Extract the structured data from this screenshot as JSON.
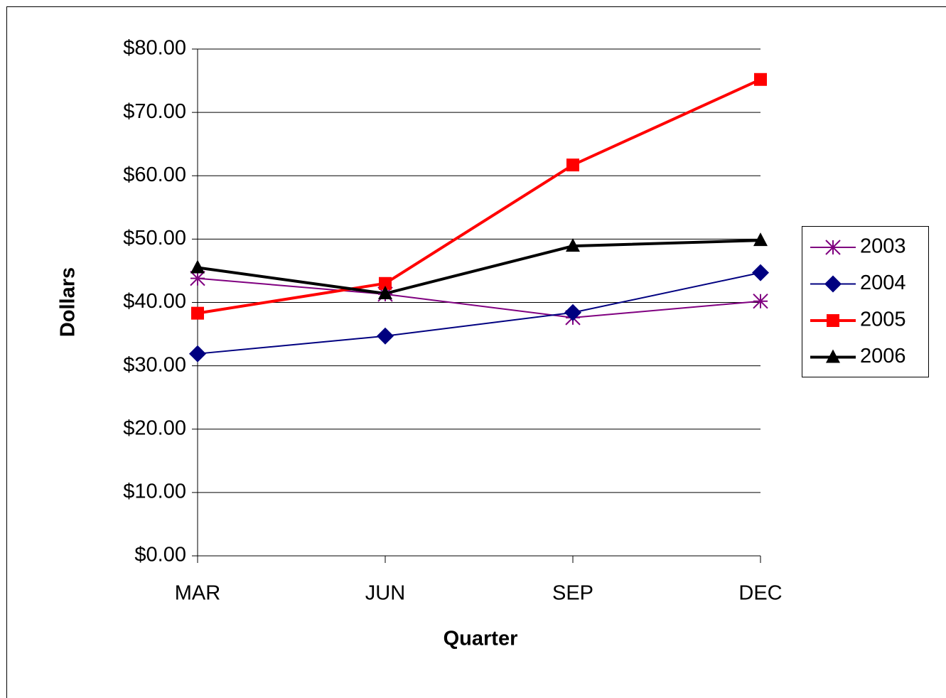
{
  "chart_data": {
    "type": "line",
    "x_label": "Quarter",
    "y_label": "Dollars",
    "categories": [
      "MAR",
      "JUN",
      "SEP",
      "DEC"
    ],
    "series": [
      {
        "name": "2003",
        "color": "#800080",
        "marker": "star",
        "line_width": 2,
        "values": [
          43.8,
          41.3,
          37.6,
          40.2
        ]
      },
      {
        "name": "2004",
        "color": "#000080",
        "marker": "diamond",
        "line_width": 2,
        "values": [
          31.9,
          34.7,
          38.4,
          44.7
        ]
      },
      {
        "name": "2005",
        "color": "#ff0000",
        "marker": "square",
        "line_width": 4,
        "values": [
          38.3,
          43.0,
          61.7,
          75.2
        ]
      },
      {
        "name": "2006",
        "color": "#000000",
        "marker": "triangle",
        "line_width": 4,
        "values": [
          45.5,
          41.4,
          48.9,
          49.8
        ]
      }
    ],
    "ylim": [
      0,
      80
    ],
    "yticks": [
      {
        "value": 0,
        "label": "$0.00"
      },
      {
        "value": 10,
        "label": "$10.00"
      },
      {
        "value": 20,
        "label": "$20.00"
      },
      {
        "value": 30,
        "label": "$30.00"
      },
      {
        "value": 40,
        "label": "$40.00"
      },
      {
        "value": 50,
        "label": "$50.00"
      },
      {
        "value": 60,
        "label": "$60.00"
      },
      {
        "value": 70,
        "label": "$70.00"
      },
      {
        "value": 80,
        "label": "$80.00"
      }
    ],
    "grid": true,
    "legend": "right"
  }
}
